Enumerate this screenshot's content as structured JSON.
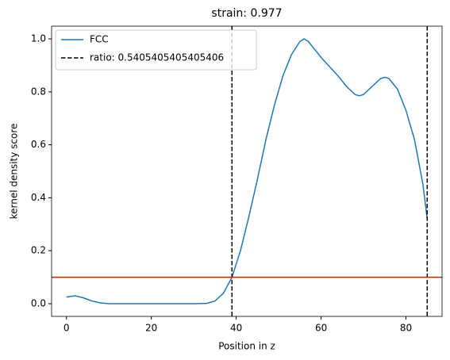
{
  "chart_data": {
    "type": "line",
    "title": "strain: 0.977",
    "xlabel": "Position in z",
    "ylabel": "kernel density score",
    "x": [
      0,
      2,
      4,
      6,
      8,
      10,
      15,
      20,
      25,
      30,
      33,
      35,
      37,
      39,
      41,
      43,
      45,
      47,
      49,
      51,
      53,
      55,
      56,
      57,
      58,
      60,
      62,
      64,
      66,
      68,
      69,
      70,
      72,
      74,
      75,
      76,
      78,
      80,
      82,
      84,
      85
    ],
    "series": [
      {
        "name": "FCC",
        "color": "#1f77b4",
        "values": [
          0.025,
          0.03,
          0.022,
          0.01,
          0.003,
          0.0,
          0,
          0,
          0,
          0,
          0.001,
          0.01,
          0.04,
          0.1,
          0.2,
          0.33,
          0.47,
          0.62,
          0.75,
          0.86,
          0.94,
          0.99,
          1.0,
          0.99,
          0.97,
          0.93,
          0.895,
          0.86,
          0.82,
          0.79,
          0.785,
          0.79,
          0.82,
          0.85,
          0.855,
          0.85,
          0.81,
          0.73,
          0.62,
          0.45,
          0.32
        ]
      }
    ],
    "vlines": {
      "name": "ratio: 0.5405405405405406",
      "color": "#000000",
      "x": [
        39,
        85
      ]
    },
    "hline": {
      "y": 0.1,
      "color": "#ff0000"
    },
    "xlim": [
      -3.5,
      88.5
    ],
    "ylim": [
      -0.048,
      1.048
    ],
    "xticks": [
      0,
      20,
      40,
      60,
      80
    ],
    "yticks": [
      {
        "value": 0,
        "label": "0.0"
      },
      {
        "value": 0.2,
        "label": "0.2"
      },
      {
        "value": 0.4,
        "label": "0.4"
      },
      {
        "value": 0.6,
        "label": "0.6"
      },
      {
        "value": 0.8,
        "label": "0.8"
      },
      {
        "value": 1,
        "label": "1.0"
      }
    ],
    "legend": "upper left"
  }
}
